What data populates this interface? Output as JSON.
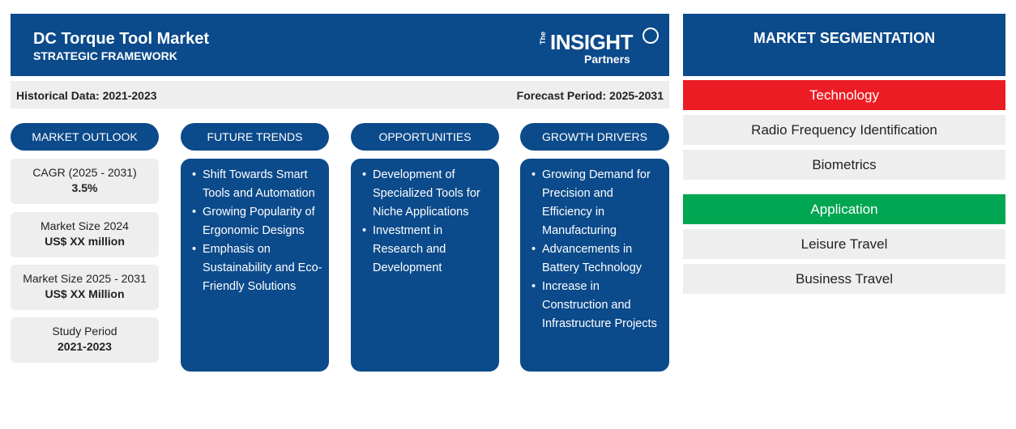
{
  "header": {
    "title": "DC Torque Tool Market",
    "subtitle": "STRATEGIC FRAMEWORK",
    "logo": {
      "the": "The",
      "insight": "INSIGHT",
      "partners": "Partners"
    }
  },
  "periods": {
    "historical": "Historical Data: 2021-2023",
    "forecast": "Forecast Period: 2025-2031"
  },
  "outlook": {
    "label": "MARKET OUTLOOK",
    "stats": [
      {
        "label": "CAGR (2025 - 2031)",
        "value": "3.5%"
      },
      {
        "label": "Market Size 2024",
        "value": "US$ XX million"
      },
      {
        "label": "Market Size 2025 - 2031",
        "value": "US$ XX Million"
      },
      {
        "label": "Study Period",
        "value": "2021-2023"
      }
    ]
  },
  "columns": {
    "trends": {
      "label": "FUTURE TRENDS",
      "items": [
        "Shift Towards Smart Tools and Automation",
        "Growing Popularity of Ergonomic Designs",
        "Emphasis on Sustainability and Eco-Friendly Solutions"
      ]
    },
    "opportunities": {
      "label": "OPPORTUNITIES",
      "items": [
        "Development of Specialized Tools for Niche Applications",
        "Investment in Research and Development"
      ]
    },
    "drivers": {
      "label": "GROWTH DRIVERS",
      "items": [
        "Growing Demand for Precision and Efficiency in Manufacturing",
        "Advancements in Battery Technology",
        "Increase in Construction and Infrastructure Projects"
      ]
    }
  },
  "segmentation": {
    "title": "MARKET SEGMENTATION",
    "groups": [
      {
        "name": "Technology",
        "color": "#ec1c24",
        "items": [
          "Radio Frequency Identification",
          "Biometrics"
        ]
      },
      {
        "name": "Application",
        "color": "#00a651",
        "items": [
          "Leisure Travel",
          "Business Travel"
        ]
      }
    ]
  },
  "colors": {
    "primary": "#0b4a8b",
    "panel": "#eeeeee"
  }
}
